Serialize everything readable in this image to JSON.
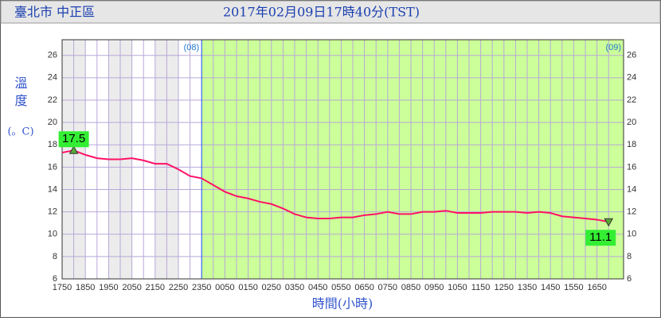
{
  "header": {
    "location": "臺北市 中正區",
    "timestamp": "2017年02月09日17時40分(TST)"
  },
  "chart_data": {
    "type": "line",
    "y_label_top": "溫度",
    "y_label_unit": "(。C)",
    "x_label": "時間(小時)",
    "annotations": [
      "(08)",
      "(09)"
    ],
    "categories": [
      "1750",
      null,
      "1850",
      null,
      "1950",
      null,
      "2050",
      null,
      "2150",
      null,
      "2250",
      null,
      "2350",
      null,
      "0050",
      null,
      "0150",
      null,
      "0250",
      null,
      "0350",
      null,
      "0450",
      null,
      "0550",
      null,
      "0650",
      null,
      "0750",
      null,
      "0850",
      null,
      "0950",
      null,
      "1050",
      null,
      "1150",
      null,
      "1250",
      null,
      "1350",
      null,
      "1450",
      null,
      "1550",
      null,
      "1650",
      null
    ],
    "series": [
      {
        "name": "溫度",
        "color": "#ff1166",
        "values": [
          17.3,
          17.5,
          17.1,
          16.8,
          16.7,
          16.7,
          16.8,
          16.6,
          16.3,
          16.3,
          15.8,
          15.2,
          15.0,
          14.4,
          13.8,
          13.4,
          13.2,
          12.9,
          12.7,
          12.3,
          11.8,
          11.5,
          11.4,
          11.4,
          11.5,
          11.5,
          11.7,
          11.8,
          12.0,
          11.8,
          11.8,
          12.0,
          12.0,
          12.1,
          11.9,
          11.9,
          11.9,
          12.0,
          12.0,
          12.0,
          11.9,
          12.0,
          11.9,
          11.6,
          11.5,
          11.4,
          11.3,
          11.1
        ]
      }
    ],
    "max_index": 1,
    "min_index": 47,
    "ylim": [
      6,
      27.4
    ],
    "yticks": [
      6,
      8,
      10,
      12,
      14,
      16,
      18,
      20,
      22,
      24,
      26
    ],
    "grid": true
  }
}
